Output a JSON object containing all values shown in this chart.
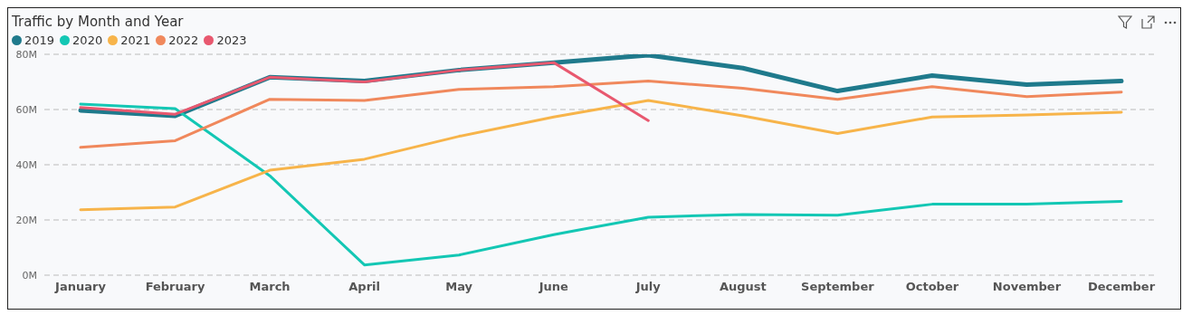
{
  "chart_data": {
    "type": "line",
    "title": "Traffic by Month and Year",
    "categories": [
      "January",
      "February",
      "March",
      "April",
      "May",
      "June",
      "July",
      "August",
      "September",
      "October",
      "November",
      "December"
    ],
    "series": [
      {
        "name": "2019",
        "color": "#1f7a8c",
        "values": [
          59.7,
          57.7,
          71.7,
          70.3,
          74.3,
          77,
          79.7,
          75,
          66.7,
          72.3,
          69,
          70.3
        ]
      },
      {
        "name": "2020",
        "color": "#13c7b4",
        "values": [
          62,
          60.3,
          36,
          3.7,
          7.3,
          14.7,
          21,
          22,
          21.7,
          25.7,
          25.7,
          26.7
        ]
      },
      {
        "name": "2021",
        "color": "#f7b44a",
        "values": [
          23.7,
          24.7,
          38,
          42,
          50.3,
          57.3,
          63.3,
          57.7,
          51.3,
          57.3,
          58,
          59
        ]
      },
      {
        "name": "2022",
        "color": "#f0885c",
        "values": [
          46.3,
          48.7,
          63.7,
          63.3,
          67.3,
          68.3,
          70.3,
          67.7,
          63.7,
          68.3,
          64.7,
          66.3
        ]
      },
      {
        "name": "2023",
        "color": "#e8586f",
        "values": [
          60.7,
          58.3,
          71.7,
          70,
          74.3,
          77,
          56,
          null,
          null,
          null,
          null,
          null
        ]
      }
    ],
    "ylim": [
      0,
      80
    ],
    "yticks": [
      {
        "value": 0,
        "label": "0M"
      },
      {
        "value": 20,
        "label": "20M"
      },
      {
        "value": 40,
        "label": "40M"
      },
      {
        "value": 60,
        "label": "60M"
      },
      {
        "value": 80,
        "label": "80M"
      }
    ],
    "grid": "y",
    "legend": "top left",
    "marker": "none",
    "line_style": "solid"
  }
}
